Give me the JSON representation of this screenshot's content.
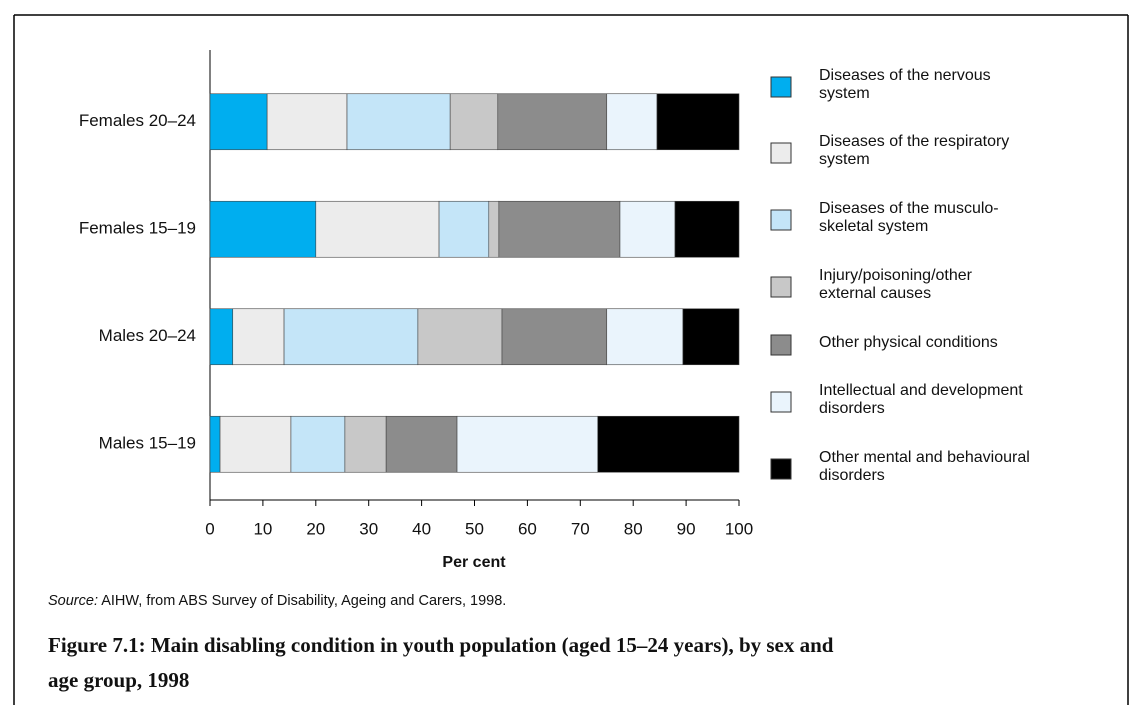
{
  "chart_data": {
    "type": "stacked_barh",
    "categories": [
      "Females 20–24",
      "Females 15–19",
      "Males 20–24",
      "Males 15–19"
    ],
    "series": [
      {
        "name": "Diseases of the nervous\nsystem",
        "color": "#00aeef",
        "values": [
          10.8,
          20.0,
          4.3,
          1.9
        ]
      },
      {
        "name": "Diseases of the respiratory\nsystem",
        "color": "#ececec",
        "values": [
          15.1,
          23.3,
          9.7,
          13.4
        ]
      },
      {
        "name": "Diseases of the musculo-\nskeletal system",
        "color": "#c4e5f8",
        "values": [
          19.5,
          9.4,
          25.3,
          10.2
        ]
      },
      {
        "name": "Injury/poisoning/other\nexternal causes",
        "color": "#c8c8c8",
        "values": [
          9.0,
          1.9,
          15.9,
          7.8
        ]
      },
      {
        "name": "Other physical conditions",
        "color": "#8c8c8c",
        "values": [
          20.6,
          22.9,
          19.8,
          13.4
        ]
      },
      {
        "name": "Intellectual and development\ndisorders",
        "color": "#eaf4fc",
        "values": [
          9.5,
          10.4,
          14.4,
          26.6
        ]
      },
      {
        "name": "Other mental and behavioural\ndisorders",
        "color": "#000000",
        "values": [
          15.5,
          12.1,
          10.6,
          26.7
        ]
      }
    ],
    "xlim": [
      0,
      100
    ],
    "xticks": [
      0,
      10,
      20,
      30,
      40,
      50,
      60,
      70,
      80,
      90,
      100
    ],
    "x_label": "Per cent",
    "source_label": "Source:",
    "source_text": " AIHW, from ABS Survey of Disability, Ageing and Carers, 1998.",
    "caption": "Figure 7.1: Main disabling condition in youth population (aged 15–24 years), by sex and\nage group, 1998"
  }
}
